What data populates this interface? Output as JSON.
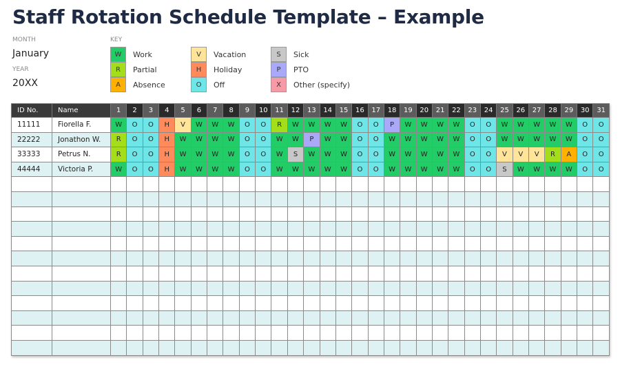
{
  "title": "Staff Rotation Schedule Template – Example",
  "meta": {
    "month_label": "MONTH",
    "month_value": "January",
    "year_label": "YEAR",
    "year_value": "20XX"
  },
  "key": {
    "label": "KEY",
    "items": [
      {
        "code": "W",
        "label": "Work",
        "color": "#22cc66"
      },
      {
        "code": "R",
        "label": "Partial",
        "color": "#a4de1a"
      },
      {
        "code": "A",
        "label": "Absence",
        "color": "#ffb000"
      },
      {
        "code": "V",
        "label": "Vacation",
        "color": "#ffe49a"
      },
      {
        "code": "H",
        "label": "Holiday",
        "color": "#ff8a5c"
      },
      {
        "code": "O",
        "label": "Off",
        "color": "#6ee6e8"
      },
      {
        "code": "S",
        "label": "Sick",
        "color": "#c8c8c8"
      },
      {
        "code": "P",
        "label": "PTO",
        "color": "#aaa8f8"
      },
      {
        "code": "X",
        "label": "Other (specify)",
        "color": "#f79aa8"
      }
    ]
  },
  "table": {
    "headers": {
      "id": "ID No.",
      "name": "Name"
    },
    "days": [
      "1",
      "2",
      "3",
      "4",
      "5",
      "6",
      "7",
      "8",
      "9",
      "10",
      "11",
      "12",
      "13",
      "14",
      "15",
      "16",
      "17",
      "18",
      "19",
      "20",
      "21",
      "22",
      "23",
      "24",
      "25",
      "26",
      "27",
      "28",
      "29",
      "30",
      "31"
    ],
    "rows": [
      {
        "id": "11111",
        "name": "Fiorella F.",
        "codes": [
          "W",
          "O",
          "O",
          "H",
          "V",
          "W",
          "W",
          "W",
          "O",
          "O",
          "R",
          "W",
          "W",
          "W",
          "W",
          "O",
          "O",
          "P",
          "W",
          "W",
          "W",
          "W",
          "O",
          "O",
          "W",
          "W",
          "W",
          "W",
          "W",
          "O",
          "O"
        ]
      },
      {
        "id": "22222",
        "name": "Jonathon W.",
        "codes": [
          "R",
          "O",
          "O",
          "H",
          "W",
          "W",
          "W",
          "W",
          "O",
          "O",
          "W",
          "W",
          "P",
          "W",
          "W",
          "O",
          "O",
          "W",
          "W",
          "W",
          "W",
          "W",
          "O",
          "O",
          "W",
          "W",
          "W",
          "W",
          "W",
          "O",
          "O"
        ]
      },
      {
        "id": "33333",
        "name": "Petrus N.",
        "codes": [
          "R",
          "O",
          "O",
          "H",
          "W",
          "W",
          "W",
          "W",
          "O",
          "O",
          "W",
          "S",
          "W",
          "W",
          "W",
          "O",
          "O",
          "W",
          "W",
          "W",
          "W",
          "W",
          "O",
          "O",
          "V",
          "V",
          "V",
          "R",
          "A",
          "O",
          "O"
        ]
      },
      {
        "id": "44444",
        "name": "Victoria P.",
        "codes": [
          "W",
          "O",
          "O",
          "H",
          "W",
          "W",
          "W",
          "W",
          "O",
          "O",
          "W",
          "W",
          "W",
          "W",
          "W",
          "O",
          "O",
          "W",
          "W",
          "W",
          "W",
          "W",
          "O",
          "O",
          "S",
          "W",
          "W",
          "W",
          "W",
          "O",
          "O"
        ]
      }
    ],
    "empty_rows": 12
  }
}
